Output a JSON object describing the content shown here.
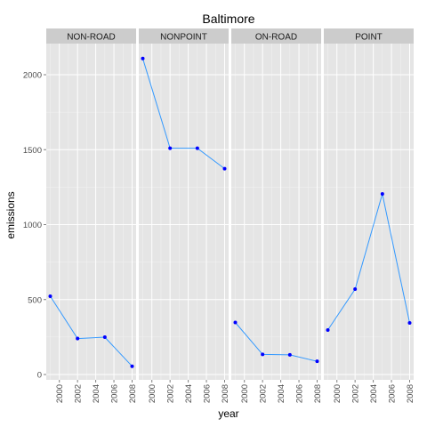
{
  "chart_data": {
    "type": "line",
    "title": "Baltimore",
    "xlabel": "year",
    "ylabel": "emissions",
    "x": [
      1999,
      2002,
      2005,
      2008
    ],
    "x_ticks": [
      2000,
      2002,
      2004,
      2006,
      2008
    ],
    "y_ticks": [
      0,
      500,
      1000,
      1500,
      2000
    ],
    "xlim": [
      1999,
      2008
    ],
    "ylim": [
      0,
      2200
    ],
    "grid": true,
    "line_color": "#3399ff",
    "point_color": "#0000ff",
    "panel_background": "#e5e5e5",
    "strip_background": "#cccccc",
    "panels": [
      {
        "name": "NON-ROAD",
        "values": [
          522,
          240,
          249,
          55
        ]
      },
      {
        "name": "NONPOINT",
        "values": [
          2108,
          1510,
          1510,
          1373
        ]
      },
      {
        "name": "ON-ROAD",
        "values": [
          347,
          134,
          131,
          88
        ]
      },
      {
        "name": "POINT",
        "values": [
          297,
          570,
          1205,
          344
        ]
      }
    ]
  }
}
